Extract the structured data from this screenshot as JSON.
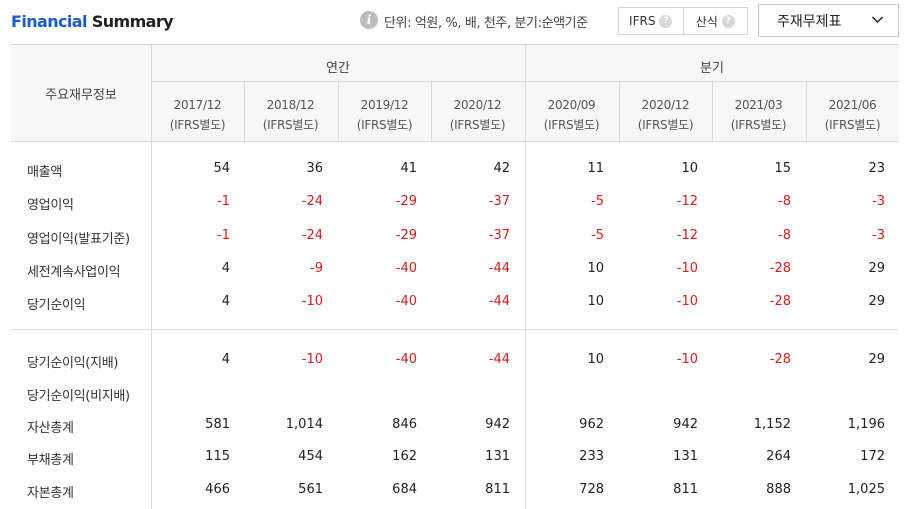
{
  "header": {
    "title_part1": "Financial",
    "title_part2": "Summary",
    "info_icon": "info-icon",
    "unit_text": "단위: 억원, %, 배, 천주, 분기:순액기준",
    "toggle": [
      {
        "label": "IFRS",
        "icon": "question-icon"
      },
      {
        "label": "산식",
        "icon": "question-icon"
      }
    ],
    "dropdown": {
      "selected": "주재무제표",
      "icon": "chevron-down-icon"
    }
  },
  "table": {
    "corner_label": "주요재무정보",
    "groups": [
      "연간",
      "분기"
    ],
    "periods": [
      {
        "date": "2017/12",
        "basis": "(IFRS별도)"
      },
      {
        "date": "2018/12",
        "basis": "(IFRS별도)"
      },
      {
        "date": "2019/12",
        "basis": "(IFRS별도)"
      },
      {
        "date": "2020/12",
        "basis": "(IFRS별도)"
      },
      {
        "date": "2020/09",
        "basis": "(IFRS별도)"
      },
      {
        "date": "2020/12",
        "basis": "(IFRS별도)"
      },
      {
        "date": "2021/03",
        "basis": "(IFRS별도)"
      },
      {
        "date": "2021/06",
        "basis": "(IFRS별도)"
      }
    ],
    "rows_section1": [
      {
        "label": "매출액",
        "values": [
          "54",
          "36",
          "41",
          "42",
          "11",
          "10",
          "15",
          "23"
        ]
      },
      {
        "label": "영업이익",
        "values": [
          "-1",
          "-24",
          "-29",
          "-37",
          "-5",
          "-12",
          "-8",
          "-3"
        ]
      },
      {
        "label": "영업이익(발표기준)",
        "values": [
          "-1",
          "-24",
          "-29",
          "-37",
          "-5",
          "-12",
          "-8",
          "-3"
        ]
      },
      {
        "label": "세전계속사업이익",
        "values": [
          "4",
          "-9",
          "-40",
          "-44",
          "10",
          "-10",
          "-28",
          "29"
        ]
      },
      {
        "label": "당기순이익",
        "values": [
          "4",
          "-10",
          "-40",
          "-44",
          "10",
          "-10",
          "-28",
          "29"
        ]
      }
    ],
    "rows_section2": [
      {
        "label": "당기순이익(지배)",
        "values": [
          "4",
          "-10",
          "-40",
          "-44",
          "10",
          "-10",
          "-28",
          "29"
        ]
      },
      {
        "label": "당기순이익(비지배)",
        "values": [
          "",
          "",
          "",
          "",
          "",
          "",
          "",
          ""
        ]
      },
      {
        "label": "자산총계",
        "values": [
          "581",
          "1,014",
          "846",
          "942",
          "962",
          "942",
          "1,152",
          "1,196"
        ]
      },
      {
        "label": "부채총계",
        "values": [
          "115",
          "454",
          "162",
          "131",
          "233",
          "131",
          "264",
          "172"
        ]
      },
      {
        "label": "자본총계",
        "values": [
          "466",
          "561",
          "684",
          "811",
          "728",
          "811",
          "888",
          "1,025"
        ]
      }
    ]
  }
}
